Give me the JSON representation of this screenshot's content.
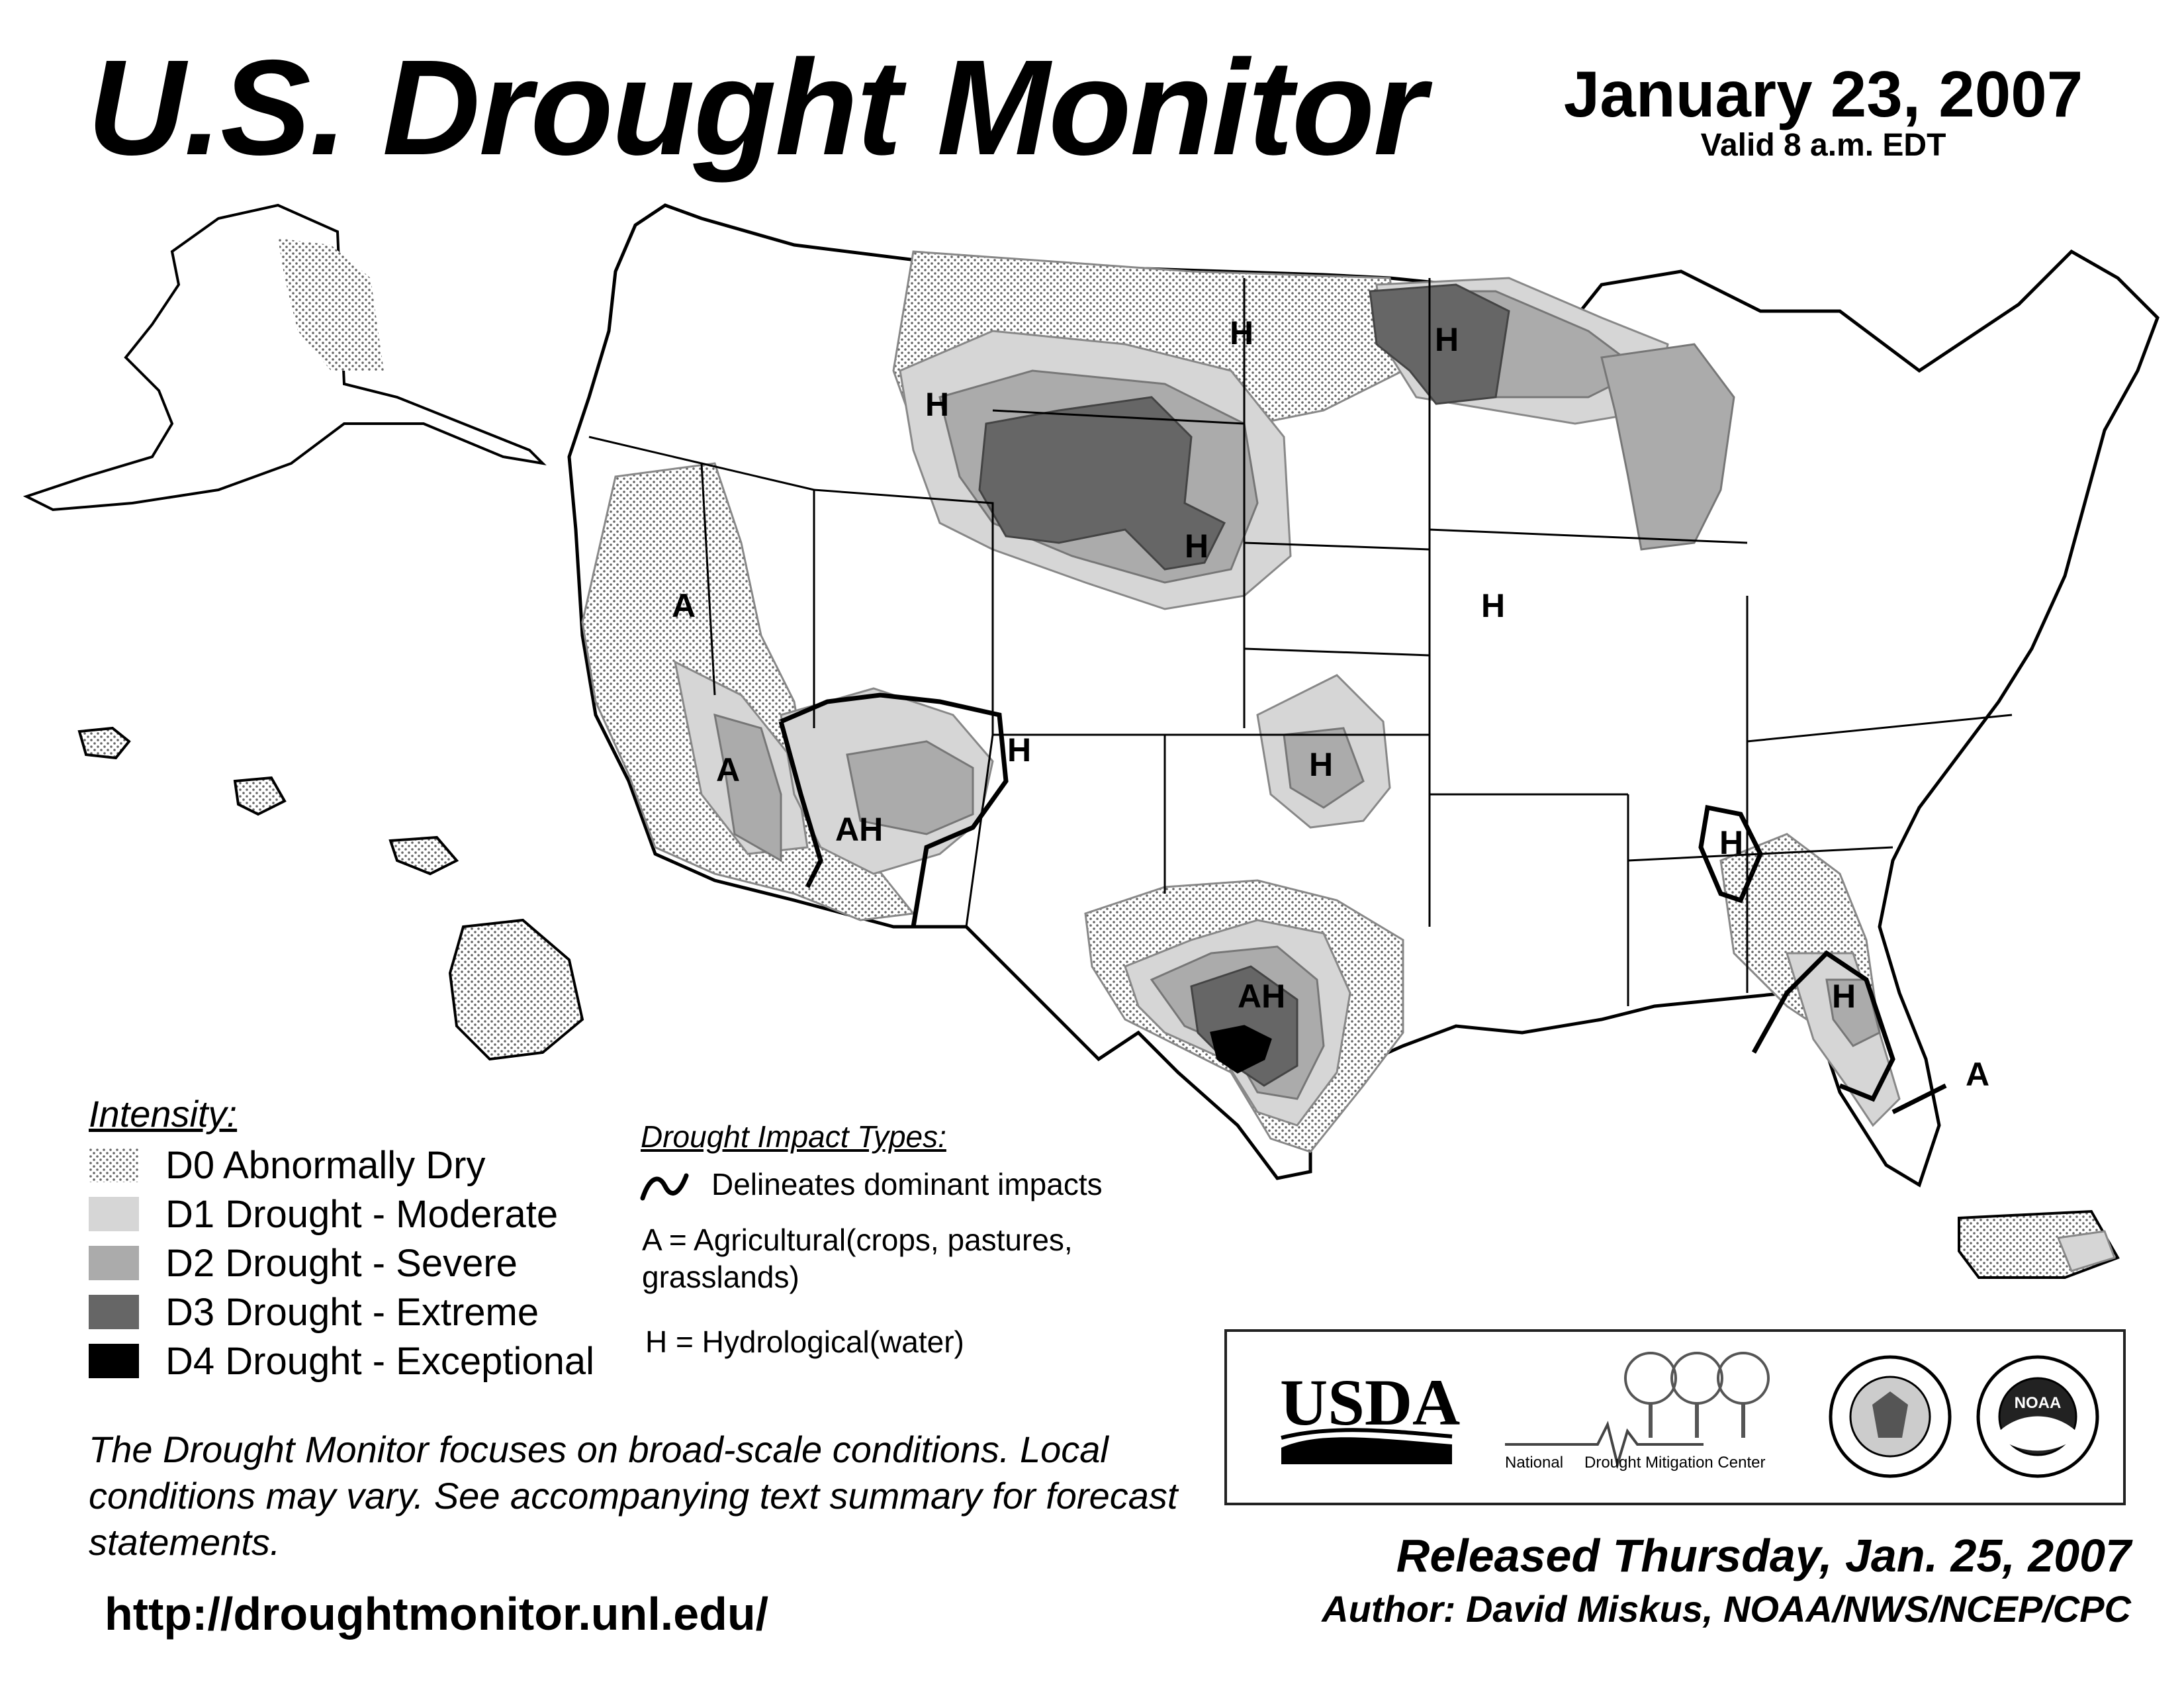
{
  "header": {
    "title": "U.S. Drought Monitor",
    "date": "January 23, 2007",
    "valid": "Valid 8 a.m. EDT"
  },
  "legend": {
    "heading": "Intensity:",
    "items": [
      {
        "label": "D0 Abnormally Dry",
        "pattern": "dots",
        "color": "#f2f2f2"
      },
      {
        "label": "D1 Drought - Moderate",
        "pattern": "solid",
        "color": "#d6d6d6"
      },
      {
        "label": "D2 Drought - Severe",
        "pattern": "solid",
        "color": "#ababab"
      },
      {
        "label": "D3 Drought - Extreme",
        "pattern": "solid",
        "color": "#666666"
      },
      {
        "label": "D4 Drought - Exceptional",
        "pattern": "solid",
        "color": "#000000"
      }
    ]
  },
  "impacts": {
    "heading": "Drought Impact Types:",
    "delineates": "Delineates dominant impacts",
    "agricultural": "A = Agricultural(crops, pastures, grasslands)",
    "hydrological": "H = Hydrological(water)"
  },
  "map_labels": {
    "items": [
      "H",
      "H",
      "H",
      "H",
      "H",
      "H",
      "H",
      "H",
      "A",
      "A",
      "AH",
      "AH",
      "A"
    ]
  },
  "disclaimer": "The Drought Monitor focuses on broad-scale conditions. Local conditions may vary. See accompanying text summary for forecast statements.",
  "url": "http://droughtmonitor.unl.edu/",
  "logos": {
    "usda": "USDA",
    "ndmc_left": "National",
    "ndmc_right": "Drought Mitigation Center",
    "noaa": "NOAA"
  },
  "released": "Released Thursday, Jan. 25, 2007",
  "author": "Author: David Miskus, NOAA/NWS/NCEP/CPC"
}
